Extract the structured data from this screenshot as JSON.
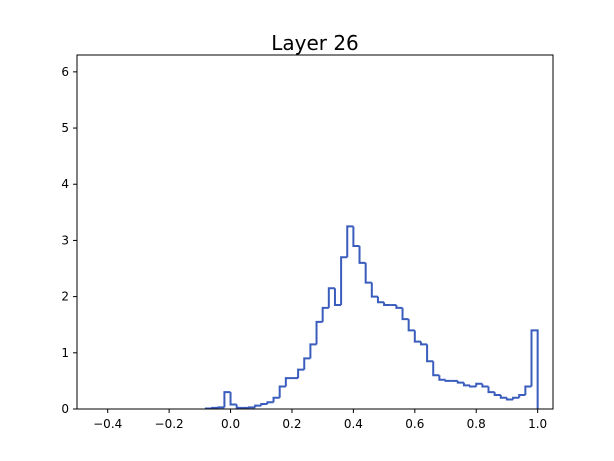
{
  "chart_data": {
    "type": "histogram",
    "title": "Layer 26",
    "color": "#3a5dbd",
    "histtype": "step",
    "bins": [
      -0.08,
      -0.06,
      -0.04,
      -0.02,
      0.0,
      0.02,
      0.04,
      0.06,
      0.08,
      0.1,
      0.12,
      0.14,
      0.16,
      0.18,
      0.2,
      0.22,
      0.24,
      0.26,
      0.28,
      0.3,
      0.32,
      0.34,
      0.36,
      0.38,
      0.4,
      0.42,
      0.44,
      0.46,
      0.48,
      0.5,
      0.52,
      0.54,
      0.56,
      0.58,
      0.6,
      0.62,
      0.64,
      0.66,
      0.68,
      0.7,
      0.72,
      0.74,
      0.76,
      0.78,
      0.8,
      0.82,
      0.84,
      0.86,
      0.88,
      0.9,
      0.92,
      0.94,
      0.96,
      0.98,
      1.0
    ],
    "counts": [
      0.01,
      0.02,
      0.03,
      0.3,
      0.08,
      0.02,
      0.02,
      0.03,
      0.06,
      0.09,
      0.12,
      0.2,
      0.4,
      0.55,
      0.55,
      0.7,
      0.9,
      1.15,
      1.55,
      1.8,
      2.15,
      1.85,
      2.7,
      3.25,
      2.9,
      2.6,
      2.25,
      2.0,
      1.9,
      1.85,
      1.85,
      1.8,
      1.6,
      1.4,
      1.2,
      1.15,
      0.85,
      0.6,
      0.52,
      0.5,
      0.5,
      0.47,
      0.42,
      0.4,
      0.45,
      0.4,
      0.3,
      0.25,
      0.2,
      0.17,
      0.2,
      0.25,
      0.4,
      1.4
    ],
    "xlim": [
      -0.5,
      1.05
    ],
    "ylim": [
      0,
      6.3
    ],
    "xticks": [
      {
        "value": -0.4,
        "label": "−0.4"
      },
      {
        "value": -0.2,
        "label": "−0.2"
      },
      {
        "value": 0.0,
        "label": "0.0"
      },
      0.2,
      0.4,
      0.6,
      0.8,
      {
        "value": 1.0,
        "label": "1.0"
      }
    ],
    "yticks": [
      0,
      1,
      2,
      3,
      4,
      5,
      6
    ],
    "grid": false
  }
}
